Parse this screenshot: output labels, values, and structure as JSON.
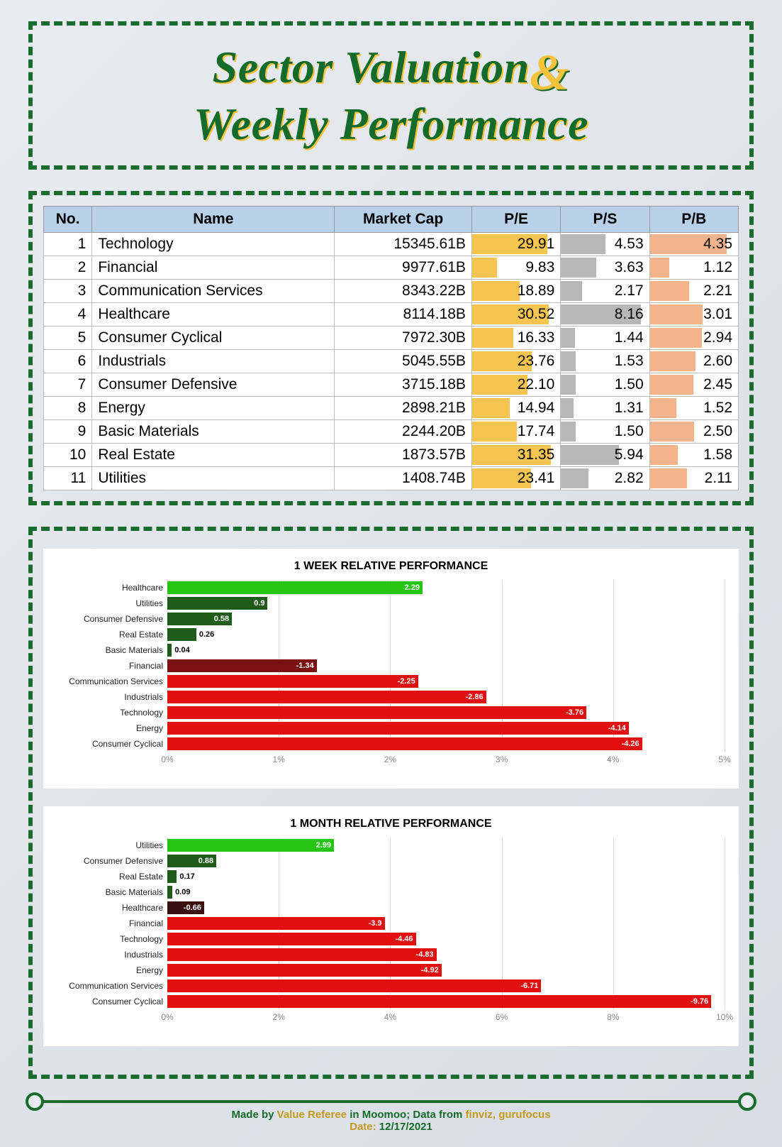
{
  "title": {
    "line1": "Sector Valuation",
    "amp": "&",
    "line2": "Weekly Performance"
  },
  "table": {
    "headers": [
      "No.",
      "Name",
      "Market Cap",
      "P/E",
      "P/S",
      "P/B"
    ],
    "header_bg": "#b8d0e8",
    "pe": {
      "fill": "#f5c451",
      "max": 35.0
    },
    "ps": {
      "fill": "#b7b7b7",
      "max": 9.0
    },
    "pb": {
      "fill": "#f3b48b",
      "max": 5.0
    },
    "rows": [
      {
        "no": 1,
        "name": "Technology",
        "mcap": "15345.61B",
        "pe": 29.91,
        "ps": 4.53,
        "pb": 4.35
      },
      {
        "no": 2,
        "name": "Financial",
        "mcap": "9977.61B",
        "pe": 9.83,
        "ps": 3.63,
        "pb": 1.12
      },
      {
        "no": 3,
        "name": "Communication Services",
        "mcap": "8343.22B",
        "pe": 18.89,
        "ps": 2.17,
        "pb": 2.21
      },
      {
        "no": 4,
        "name": "Healthcare",
        "mcap": "8114.18B",
        "pe": 30.52,
        "ps": 8.16,
        "pb": 3.01
      },
      {
        "no": 5,
        "name": "Consumer Cyclical",
        "mcap": "7972.30B",
        "pe": 16.33,
        "ps": 1.44,
        "pb": 2.94
      },
      {
        "no": 6,
        "name": "Industrials",
        "mcap": "5045.55B",
        "pe": 23.76,
        "ps": 1.53,
        "pb": 2.6
      },
      {
        "no": 7,
        "name": "Consumer Defensive",
        "mcap": "3715.18B",
        "pe": 22.1,
        "ps": 1.5,
        "pb": 2.45
      },
      {
        "no": 8,
        "name": "Energy",
        "mcap": "2898.21B",
        "pe": 14.94,
        "ps": 1.31,
        "pb": 1.52
      },
      {
        "no": 9,
        "name": "Basic Materials",
        "mcap": "2244.20B",
        "pe": 17.74,
        "ps": 1.5,
        "pb": 2.5
      },
      {
        "no": 10,
        "name": "Real Estate",
        "mcap": "1873.57B",
        "pe": 31.35,
        "ps": 5.94,
        "pb": 1.58
      },
      {
        "no": 11,
        "name": "Utilities",
        "mcap": "1408.74B",
        "pe": 23.41,
        "ps": 2.82,
        "pb": 2.11
      }
    ]
  },
  "charts": {
    "week": {
      "title": "1 WEEK RELATIVE PERFORMANCE",
      "max": 5,
      "tick_step": 1,
      "tick_suffix": "%",
      "series": [
        {
          "name": "Healthcare",
          "value": 2.29,
          "color": "#27c513"
        },
        {
          "name": "Utilities",
          "value": 0.9,
          "color": "#1f5c1a"
        },
        {
          "name": "Consumer Defensive",
          "value": 0.58,
          "color": "#1f5c1a"
        },
        {
          "name": "Real Estate",
          "value": 0.26,
          "color": "#1f5c1a"
        },
        {
          "name": "Basic Materials",
          "value": 0.04,
          "color": "#1f5c1a"
        },
        {
          "name": "Financial",
          "value": -1.34,
          "color": "#7a1010"
        },
        {
          "name": "Communication Services",
          "value": -2.25,
          "color": "#e20f0f"
        },
        {
          "name": "Industrials",
          "value": -2.86,
          "color": "#e20f0f"
        },
        {
          "name": "Technology",
          "value": -3.76,
          "color": "#e20f0f"
        },
        {
          "name": "Energy",
          "value": -4.14,
          "color": "#e20f0f"
        },
        {
          "name": "Consumer Cyclical",
          "value": -4.26,
          "color": "#e20f0f"
        }
      ]
    },
    "month": {
      "title": "1 MONTH RELATIVE PERFORMANCE",
      "max": 10,
      "tick_step": 2,
      "tick_suffix": "%",
      "series": [
        {
          "name": "Utilities",
          "value": 2.99,
          "color": "#27c513"
        },
        {
          "name": "Consumer Defensive",
          "value": 0.88,
          "color": "#1f5c1a"
        },
        {
          "name": "Real Estate",
          "value": 0.17,
          "color": "#1f5c1a"
        },
        {
          "name": "Basic Materials",
          "value": 0.09,
          "color": "#1f5c1a"
        },
        {
          "name": "Healthcare",
          "value": -0.66,
          "color": "#3a1010"
        },
        {
          "name": "Financial",
          "value": -3.9,
          "color": "#e20f0f"
        },
        {
          "name": "Technology",
          "value": -4.46,
          "color": "#e20f0f"
        },
        {
          "name": "Industrials",
          "value": -4.83,
          "color": "#e20f0f"
        },
        {
          "name": "Energy",
          "value": -4.92,
          "color": "#e20f0f"
        },
        {
          "name": "Communication Services",
          "value": -6.71,
          "color": "#e20f0f"
        },
        {
          "name": "Consumer Cyclical",
          "value": -9.76,
          "color": "#e20f0f"
        }
      ]
    }
  },
  "footer": {
    "made_by_prefix": "Made by ",
    "made_by_name": "Value Referee",
    "made_by_mid": " in Moomoo; Data from ",
    "sources": "finviz, gurufocus",
    "date_label": "Date: ",
    "date": "12/17/2021"
  }
}
